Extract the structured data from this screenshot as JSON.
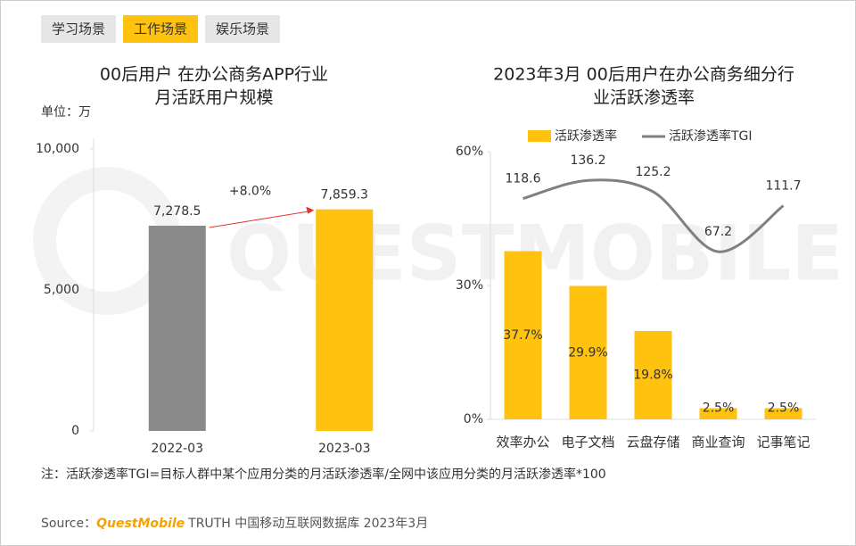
{
  "tabs": [
    "学习场景",
    "工作场景",
    "娱乐场景"
  ],
  "watermark": "QUESTMOBILE",
  "chart_data": [
    {
      "type": "bar",
      "title": [
        "00后用户 在办公商务APP行业",
        "月活跃用户规模"
      ],
      "unit_label": "单位：万",
      "categories": [
        "2022-03",
        "2023-03"
      ],
      "values": [
        7278.5,
        7859.3
      ],
      "value_labels": [
        "7,278.5",
        "7,859.3"
      ],
      "colors": [
        "#8a8a8a",
        "#ffc20e"
      ],
      "ylim": [
        0,
        10000
      ],
      "yticks": [
        0,
        {
          "value": 5000,
          "label": "5,000"
        },
        {
          "value": 10000,
          "label": "10,000"
        }
      ],
      "annotation": "+8.0%",
      "annotation_color": "#e8332a"
    },
    {
      "type": "combo",
      "title": [
        "2023年3月 00后用户在办公商务细分行",
        "业活跃渗透率"
      ],
      "categories": [
        "效率办公",
        "电子文档",
        "云盘存储",
        "商业查询",
        "记事笔记"
      ],
      "series": [
        {
          "name": "活跃渗透率",
          "color": "#ffc20e",
          "values": [
            37.7,
            29.9,
            19.8,
            2.5,
            2.5
          ],
          "value_labels": [
            "37.7%",
            "29.9%",
            "19.8%",
            "2.5%",
            "2.5%"
          ]
        },
        {
          "name": "活跃渗透率TGI",
          "color": "#808080",
          "axis": "y2",
          "values": [
            118.6,
            136.2,
            125.2,
            67.2,
            111.7
          ]
        }
      ],
      "ylim": [
        0,
        60
      ],
      "yticks": [
        {
          "value": 0,
          "label": "0%"
        },
        {
          "value": 30,
          "label": "30%"
        },
        {
          "value": 60,
          "label": "60%"
        }
      ],
      "y2lim": [
        -95,
        164
      ]
    }
  ],
  "note": "注：活跃渗透率TGI=目标人群中某个应用分类的月活跃渗透率/全网中该应用分类的月活跃渗透率*100",
  "source": {
    "label": "Source：",
    "brand": "QuestMobile",
    "text": "TRUTH 中国移动互联网数据库 2023年3月"
  }
}
